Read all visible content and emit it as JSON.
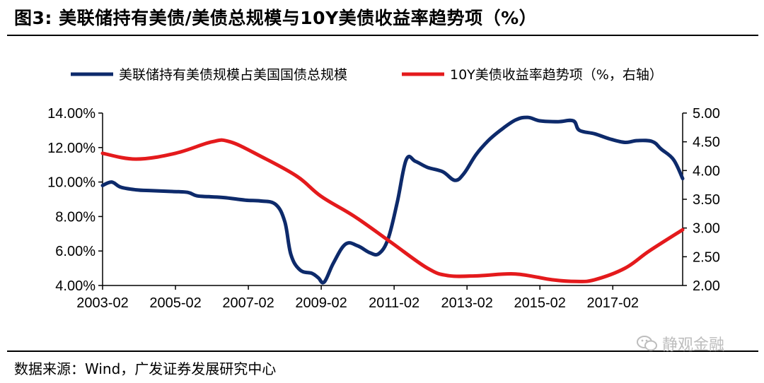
{
  "title": "图3:  美联储持有美债/美债总规模与10Y美债收益率趋势项（%）",
  "source": "数据来源：Wind，广发证券发展研究中心",
  "watermark": "静观金融",
  "icons": {
    "watermark": "wechat-icon"
  },
  "chart_data": {
    "type": "line",
    "title": "",
    "x_start": "2003-02",
    "x_end": "2019-01",
    "x_ticks": [
      "2003-02",
      "2005-02",
      "2007-02",
      "2009-02",
      "2011-02",
      "2013-02",
      "2015-02",
      "2017-02"
    ],
    "left_axis": {
      "min": 4.0,
      "max": 14.0,
      "ticks": [
        "4.00%",
        "6.00%",
        "8.00%",
        "10.00%",
        "12.00%",
        "14.00%"
      ]
    },
    "right_axis": {
      "min": 2.0,
      "max": 5.0,
      "ticks": [
        "2.00",
        "2.50",
        "3.00",
        "3.50",
        "4.00",
        "4.50",
        "5.00"
      ]
    },
    "legend_position": "top",
    "grid": false,
    "series": [
      {
        "name": "美联储持有美债规模占美国国债总规模",
        "axis": "left",
        "color": "#0d2a6b",
        "points": [
          [
            "2003-02",
            9.8
          ],
          [
            "2003-05",
            10.0
          ],
          [
            "2003-08",
            9.7
          ],
          [
            "2004-01",
            9.55
          ],
          [
            "2004-06",
            9.5
          ],
          [
            "2005-01",
            9.45
          ],
          [
            "2005-06",
            9.4
          ],
          [
            "2005-09",
            9.2
          ],
          [
            "2006-01",
            9.15
          ],
          [
            "2006-06",
            9.1
          ],
          [
            "2007-01",
            8.95
          ],
          [
            "2007-06",
            8.9
          ],
          [
            "2007-11",
            8.7
          ],
          [
            "2008-02",
            7.7
          ],
          [
            "2008-04",
            5.8
          ],
          [
            "2008-07",
            4.9
          ],
          [
            "2008-11",
            4.7
          ],
          [
            "2009-01",
            4.45
          ],
          [
            "2009-03",
            4.2
          ],
          [
            "2009-06",
            5.3
          ],
          [
            "2009-10",
            6.4
          ],
          [
            "2010-02",
            6.3
          ],
          [
            "2010-06",
            5.9
          ],
          [
            "2010-09",
            5.85
          ],
          [
            "2010-12",
            6.7
          ],
          [
            "2011-03",
            8.8
          ],
          [
            "2011-06",
            11.3
          ],
          [
            "2011-09",
            11.2
          ],
          [
            "2012-01",
            10.85
          ],
          [
            "2012-06",
            10.6
          ],
          [
            "2012-10",
            10.1
          ],
          [
            "2013-01",
            10.5
          ],
          [
            "2013-05",
            11.6
          ],
          [
            "2013-09",
            12.4
          ],
          [
            "2014-01",
            13.0
          ],
          [
            "2014-06",
            13.6
          ],
          [
            "2014-10",
            13.75
          ],
          [
            "2015-02",
            13.55
          ],
          [
            "2015-08",
            13.5
          ],
          [
            "2016-01",
            13.55
          ],
          [
            "2016-03",
            13.0
          ],
          [
            "2016-08",
            12.8
          ],
          [
            "2017-01",
            12.5
          ],
          [
            "2017-06",
            12.3
          ],
          [
            "2017-10",
            12.4
          ],
          [
            "2018-03",
            12.35
          ],
          [
            "2018-06",
            11.9
          ],
          [
            "2018-10",
            11.3
          ],
          [
            "2019-01",
            10.2
          ]
        ]
      },
      {
        "name": "10Y美债收益率趋势项（%，右轴）",
        "axis": "right",
        "color": "#e41a1c",
        "points": [
          [
            "2003-02",
            4.3
          ],
          [
            "2004-01",
            4.2
          ],
          [
            "2005-02",
            4.3
          ],
          [
            "2006-02",
            4.5
          ],
          [
            "2006-08",
            4.5
          ],
          [
            "2007-06",
            4.25
          ],
          [
            "2008-06",
            3.9
          ],
          [
            "2009-02",
            3.55
          ],
          [
            "2010-01",
            3.2
          ],
          [
            "2011-01",
            2.75
          ],
          [
            "2012-01",
            2.3
          ],
          [
            "2012-08",
            2.17
          ],
          [
            "2013-06",
            2.17
          ],
          [
            "2014-06",
            2.2
          ],
          [
            "2015-06",
            2.1
          ],
          [
            "2016-02",
            2.07
          ],
          [
            "2016-08",
            2.1
          ],
          [
            "2017-06",
            2.3
          ],
          [
            "2018-02",
            2.6
          ],
          [
            "2019-01",
            2.97
          ]
        ]
      }
    ]
  }
}
